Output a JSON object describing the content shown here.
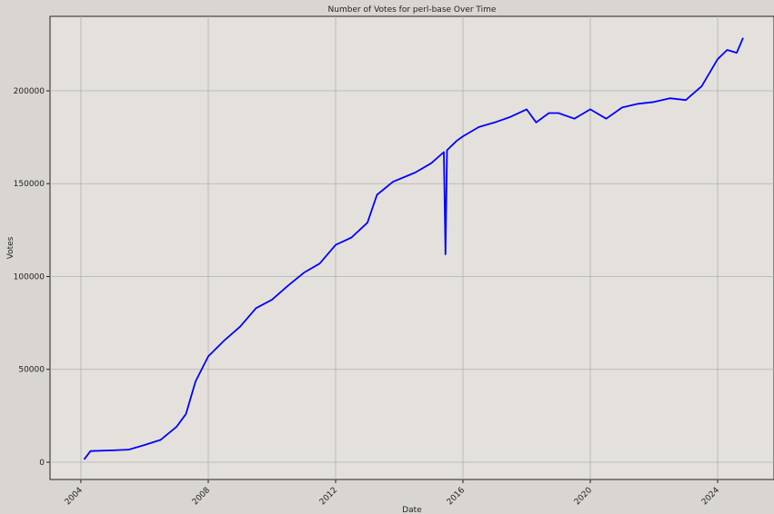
{
  "chart_data": {
    "type": "line",
    "title": "Number of Votes for perl-base Over Time",
    "x_label": "Date",
    "y_label": "Votes",
    "x": [
      2004.1,
      2004.3,
      2005,
      2005.5,
      2006,
      2006.5,
      2007,
      2007.3,
      2007.6,
      2008,
      2008.5,
      2009,
      2009.5,
      2010,
      2010.5,
      2011,
      2011.5,
      2012,
      2012.5,
      2013,
      2013.3,
      2013.8,
      2014.5,
      2015,
      2015.4,
      2015.45,
      2015.5,
      2015.8,
      2016,
      2016.5,
      2017,
      2017.5,
      2018,
      2018.3,
      2018.7,
      2019,
      2019.5,
      2020,
      2020.5,
      2021,
      2021.5,
      2022,
      2022.5,
      2023,
      2023.5,
      2024,
      2024.3,
      2024.6,
      2024.8
    ],
    "series": [
      {
        "name": "Votes",
        "color": "#0000ff",
        "values": [
          1500,
          6000,
          6400,
          6800,
          9300,
          12000,
          19000,
          26000,
          43500,
          57000,
          65500,
          73000,
          83000,
          87500,
          95000,
          102000,
          107000,
          117000,
          121000,
          129000,
          144000,
          151000,
          156000,
          161000,
          167000,
          112000,
          168000,
          173000,
          175500,
          180500,
          183000,
          186000,
          190000,
          183000,
          188000,
          188000,
          185000,
          190000,
          185000,
          191000,
          193000,
          194000,
          196000,
          195000,
          202500,
          217000,
          222000,
          220500,
          228500
        ]
      }
    ],
    "xlim": [
      2003.03,
      2025.77
    ],
    "xticks": [
      2004,
      2008,
      2012,
      2016,
      2020,
      2024
    ],
    "ylim": [
      -9300,
      240100
    ],
    "yticks": [
      0,
      50000,
      100000,
      150000,
      200000
    ],
    "grid": true
  }
}
